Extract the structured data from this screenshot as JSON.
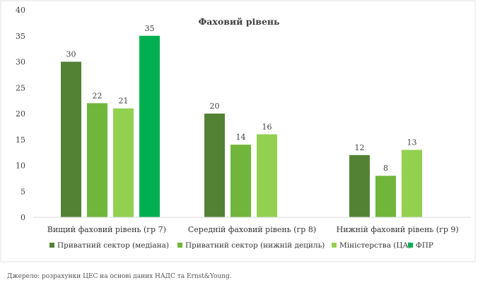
{
  "chart_data": {
    "type": "bar",
    "title": "Фаховий рівень",
    "categories": [
      "Вищий фаховий рівень (гр 7)",
      "Середній фаховий рівень (гр 8)",
      "Нижній фаховий рівень (гр 9)"
    ],
    "series": [
      {
        "name": "Приватний сектор (медіана)",
        "color": "#548235",
        "values": [
          30,
          20,
          12
        ]
      },
      {
        "name": "Приватний сектор (нижній дециль)",
        "color": "#70b63a",
        "values": [
          22,
          14,
          8
        ]
      },
      {
        "name": "Міністерства (ЦА)",
        "color": "#92d050",
        "values": [
          21,
          16,
          13
        ]
      },
      {
        "name": "ФПР",
        "color": "#00b050",
        "values": [
          35,
          null,
          null
        ]
      }
    ],
    "ylim": [
      0,
      40
    ],
    "yticks": [
      0,
      5,
      10,
      15,
      20,
      25,
      30,
      35,
      40
    ],
    "grid": false,
    "legend_position": "bottom"
  },
  "source_note": "Джерело: розрахунки ЦЕС на основі даних НАДС та Ernst&Young."
}
